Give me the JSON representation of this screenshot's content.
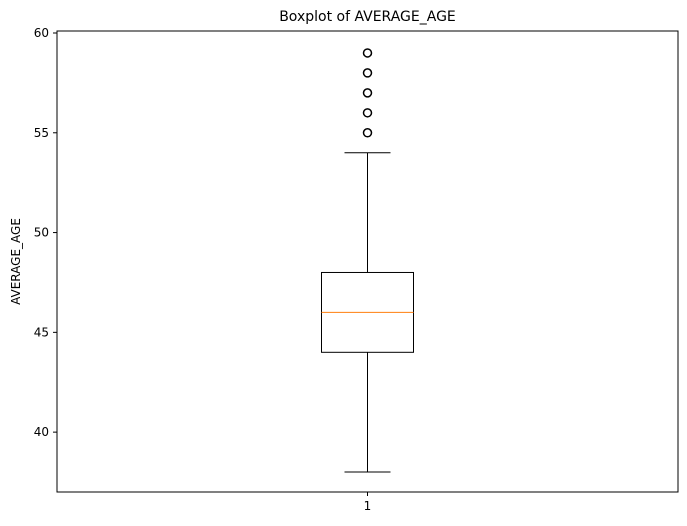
{
  "chart_data": {
    "type": "boxplot",
    "title": "Boxplot of AVERAGE_AGE",
    "xlabel": "",
    "ylabel": "AVERAGE_AGE",
    "ylim": [
      37.0,
      60.1
    ],
    "yticks": [
      40,
      45,
      50,
      55,
      60
    ],
    "categories": [
      "1"
    ],
    "boxes": [
      {
        "category": "1",
        "whisker_low": 38,
        "q1": 44,
        "median": 46,
        "q3": 48,
        "whisker_high": 54,
        "outliers": [
          55,
          56,
          57,
          58,
          59
        ]
      }
    ],
    "colors": {
      "box": "#000000",
      "median": "#ff7f0e"
    },
    "grid": false
  }
}
